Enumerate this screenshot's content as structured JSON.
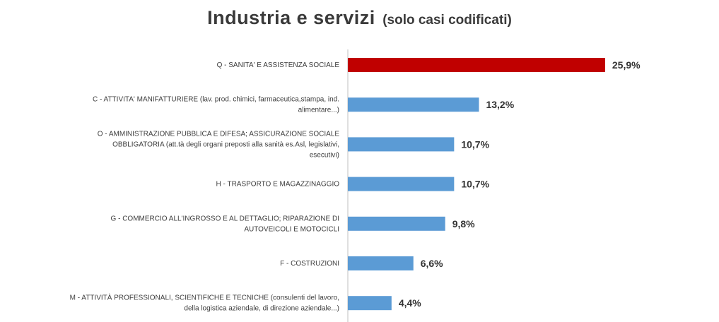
{
  "chart_data": {
    "type": "bar",
    "orientation": "horizontal",
    "title": "Industria e servizi",
    "subtitle": "(solo casi codificati)",
    "categories": [
      [
        "Q - SANITA' E ASSISTENZA SOCIALE"
      ],
      [
        "C - ATTIVITA' MANIFATTURIERE (lav. prod. chimici, farmaceutica,stampa, ind.",
        "alimentare...)"
      ],
      [
        "O - AMMINISTRAZIONE PUBBLICA E DIFESA; ASSICURAZIONE SOCIALE",
        "OBBLIGATORIA (att.tà degli organi preposti alla sanità es.Asl, legislativi,",
        "esecutivi)"
      ],
      [
        "H - TRASPORTO E MAGAZZINAGGIO"
      ],
      [
        "G - COMMERCIO ALL'INGROSSO E AL DETTAGLIO; RIPARAZIONE DI",
        "AUTOVEICOLI E MOTOCICLI"
      ],
      [
        "F - COSTRUZIONI"
      ],
      [
        "M - ATTIVITÀ PROFESSIONALI, SCIENTIFICHE E TECNICHE (consulenti del lavoro,",
        "della logistica aziendale, di direzione aziendale...)"
      ]
    ],
    "values": [
      25.9,
      13.2,
      10.7,
      10.7,
      9.8,
      6.6,
      4.4
    ],
    "value_labels": [
      "25,9%",
      "13,2%",
      "10,7%",
      "10,7%",
      "9,8%",
      "6,6%",
      "4,4%"
    ],
    "unit": "%",
    "highlight_index": 0,
    "xlim": [
      0,
      30
    ],
    "grid": false,
    "legend": "none"
  },
  "colors": {
    "highlight": "#c00000",
    "bar": "#5b9bd5",
    "axis": "#bfbfbf"
  }
}
